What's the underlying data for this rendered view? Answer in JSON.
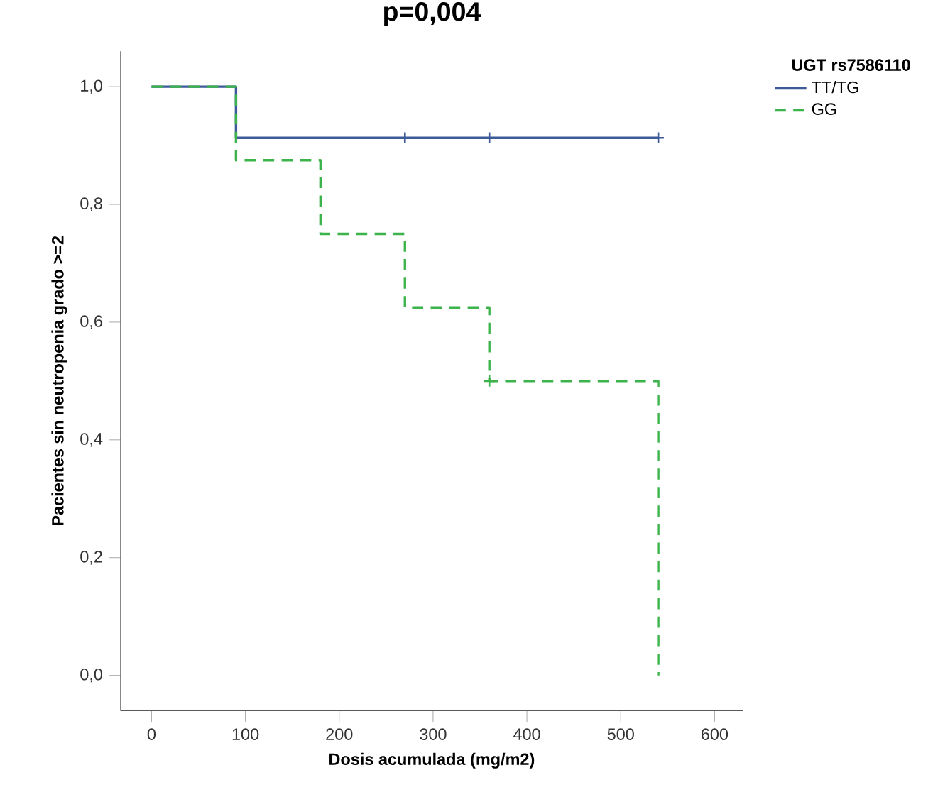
{
  "chart_data": {
    "type": "step",
    "title": "p=0,004",
    "xlabel": "Dosis acumulada (mg/m2)",
    "ylabel": "Pacientes sin neutropenia grado >=2",
    "legend_title": "UGT rs7586110",
    "series": [
      {
        "name": "TT/TG",
        "color": "#3d5a99",
        "line_style": "solid",
        "x": [
          0,
          90,
          270,
          360,
          540
        ],
        "values": [
          1,
          0.913,
          0.913,
          0.913,
          0.913
        ]
      },
      {
        "name": "GG",
        "color": "#3cb44b",
        "line_style": "dashed",
        "x": [
          0,
          90,
          180,
          270,
          360,
          540
        ],
        "values": [
          1,
          0.875,
          0.75,
          0.625,
          0.5,
          0
        ]
      },
      {
        "type": "scatter",
        "marker": "cross",
        "color": "#3d5a99",
        "x": [
          270,
          360,
          540
        ],
        "values": [
          0.913,
          0.913,
          0.913
        ]
      },
      {
        "type": "scatter",
        "marker": "cross",
        "color": "#3cb44b",
        "x": [
          360
        ],
        "values": [
          0.5
        ]
      }
    ],
    "xlim": [
      -33,
      630
    ],
    "ylim": [
      -0.06,
      1.06
    ],
    "xticks": [
      0,
      100,
      200,
      300,
      400,
      500,
      600
    ],
    "yticks": [
      {
        "value": 0,
        "label": "0,0"
      },
      {
        "value": 0.2,
        "label": "0,2"
      },
      {
        "value": 0.4,
        "label": "0,4"
      },
      {
        "value": 0.6,
        "label": "0,6"
      },
      {
        "value": 0.8,
        "label": "0,8"
      },
      {
        "value": 1,
        "label": "1,0"
      }
    ],
    "grid": false,
    "legend": "top right"
  }
}
